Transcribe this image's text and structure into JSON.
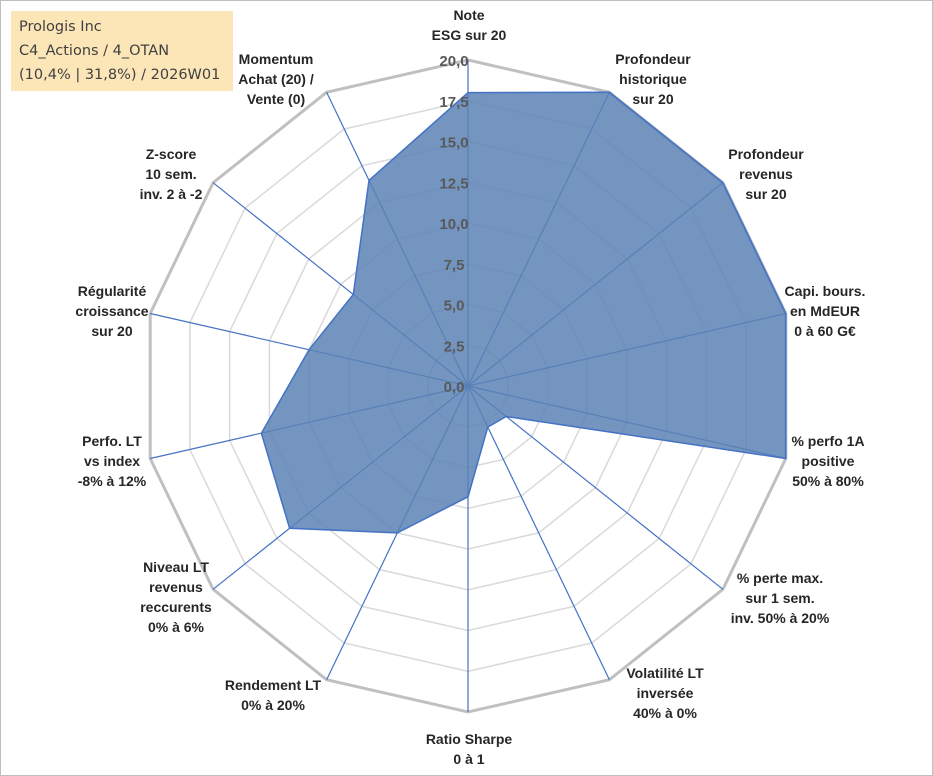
{
  "info_box": {
    "line1": "Prologis Inc",
    "line2": "C4_Actions / 4_OTAN",
    "line3": "(10,4% | 31,8%) / 2026W01"
  },
  "colors": {
    "fill": "#5b82b5",
    "stroke": "#4472c4",
    "grid_outer": "#c0c0c0",
    "grid_inner": "#d9d9d9",
    "info_bg": "#fce6b8"
  },
  "chart_data": {
    "type": "radar",
    "title": "",
    "rlim": [
      0,
      20
    ],
    "ticks": [
      "0,0",
      "2,5",
      "5,0",
      "7,5",
      "10,0",
      "12,5",
      "15,0",
      "17,5",
      "20,0"
    ],
    "axes": [
      {
        "label": [
          "Note",
          "ESG sur 20"
        ],
        "value": 18.0
      },
      {
        "label": [
          "Profondeur",
          "historique",
          "sur 20"
        ],
        "value": 20.0
      },
      {
        "label": [
          "Profondeur",
          "revenus",
          "sur 20"
        ],
        "value": 20.0
      },
      {
        "label": [
          "Capi. bours.",
          "en MdEUR",
          "0 à 60 G€"
        ],
        "value": 20.0
      },
      {
        "label": [
          "% perfo 1A",
          "positive",
          "50% à 80%"
        ],
        "value": 20.0
      },
      {
        "label": [
          "% perte max.",
          "sur 1 sem.",
          "inv. 50% à 20%"
        ],
        "value": 3.0
      },
      {
        "label": [
          "Volatilité LT",
          "inversée",
          "40% à 0%"
        ],
        "value": 2.8
      },
      {
        "label": [
          "Ratio Sharpe",
          "0 à 1"
        ],
        "value": 6.8
      },
      {
        "label": [
          "Rendement LT",
          "0% à 20%"
        ],
        "value": 10.0
      },
      {
        "label": [
          "Niveau LT",
          "revenus",
          "reccurents",
          "0% à 6%"
        ],
        "value": 14.0
      },
      {
        "label": [
          "Perfo. LT",
          "vs index",
          "-8% à 12%"
        ],
        "value": 13.0
      },
      {
        "label": [
          "Régularité",
          "croissance",
          "sur 20"
        ],
        "value": 10.0
      },
      {
        "label": [
          "Z-score",
          "10 sem.",
          "inv. 2 à -2"
        ],
        "value": 9.0
      },
      {
        "label": [
          "Momentum",
          "Achat (20) /",
          "Vente (0)"
        ],
        "value": 14.0
      }
    ]
  }
}
